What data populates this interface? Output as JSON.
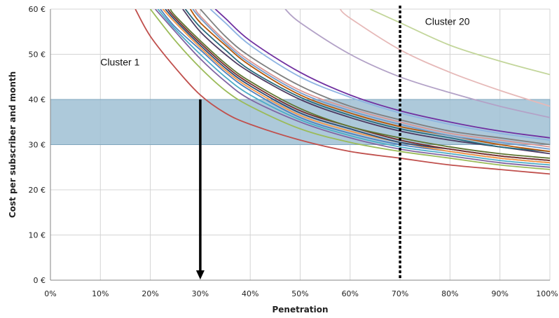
{
  "chart_data": {
    "type": "line",
    "title": "",
    "xlabel": "Penetration",
    "ylabel": "Cost per subscriber and month",
    "xlim": [
      0,
      100
    ],
    "ylim": [
      0,
      60
    ],
    "grid": true,
    "x_ticks": [
      "0%",
      "10%",
      "20%",
      "30%",
      "40%",
      "50%",
      "60%",
      "70%",
      "80%",
      "90%",
      "100%"
    ],
    "y_ticks": [
      "0 €",
      "10 €",
      "20 €",
      "30 €",
      "40 €",
      "50 €",
      "60 €"
    ],
    "band": {
      "y_from": 30,
      "y_to": 40,
      "color": "#9fc0d3"
    },
    "vertical_marker_x": 70,
    "arrow": {
      "x": 30,
      "y_from": 40,
      "y_to": 0
    },
    "annotations": [
      {
        "text": "Cluster 1",
        "x": 10,
        "y": 47.5
      },
      {
        "text": "Cluster 20",
        "x": 75,
        "y": 56.5
      }
    ],
    "series": [
      {
        "color": "#c0504d",
        "points": [
          [
            17,
            60
          ],
          [
            20,
            54
          ],
          [
            25,
            47
          ],
          [
            30,
            41
          ],
          [
            35,
            37
          ],
          [
            40,
            34.5
          ],
          [
            50,
            31
          ],
          [
            60,
            28.5
          ],
          [
            70,
            27
          ],
          [
            80,
            25.5
          ],
          [
            90,
            24.5
          ],
          [
            100,
            23.5
          ]
        ]
      },
      {
        "color": "#9bbb59",
        "points": [
          [
            20,
            60
          ],
          [
            25,
            53
          ],
          [
            30,
            47
          ],
          [
            35,
            42
          ],
          [
            40,
            38.5
          ],
          [
            50,
            33.5
          ],
          [
            60,
            30.5
          ],
          [
            70,
            28.5
          ],
          [
            80,
            27
          ],
          [
            90,
            25.5
          ],
          [
            100,
            24.5
          ]
        ]
      },
      {
        "color": "#8064a2",
        "points": [
          [
            21,
            60
          ],
          [
            25,
            55
          ],
          [
            30,
            49
          ],
          [
            35,
            44
          ],
          [
            40,
            40
          ],
          [
            50,
            35
          ],
          [
            60,
            31.5
          ],
          [
            70,
            29
          ],
          [
            80,
            27.5
          ],
          [
            90,
            26
          ],
          [
            100,
            25
          ]
        ]
      },
      {
        "color": "#4bacc6",
        "points": [
          [
            21.5,
            60
          ],
          [
            25,
            55.5
          ],
          [
            30,
            50
          ],
          [
            35,
            45
          ],
          [
            40,
            41
          ],
          [
            50,
            35.5
          ],
          [
            60,
            32
          ],
          [
            70,
            29.5
          ],
          [
            80,
            28
          ],
          [
            90,
            26.5
          ],
          [
            100,
            25.5
          ]
        ]
      },
      {
        "color": "#4f81bd",
        "points": [
          [
            22,
            60
          ],
          [
            25,
            56
          ],
          [
            30,
            51
          ],
          [
            35,
            46
          ],
          [
            40,
            42
          ],
          [
            50,
            36
          ],
          [
            60,
            32.5
          ],
          [
            70,
            30
          ],
          [
            80,
            28.5
          ],
          [
            90,
            27
          ],
          [
            100,
            26
          ]
        ]
      },
      {
        "color": "#f79646",
        "points": [
          [
            22.5,
            60
          ],
          [
            25,
            57
          ],
          [
            30,
            51.5
          ],
          [
            35,
            46.5
          ],
          [
            40,
            42.5
          ],
          [
            50,
            36.5
          ],
          [
            60,
            33
          ],
          [
            70,
            30.5
          ],
          [
            80,
            28.5
          ],
          [
            90,
            27
          ],
          [
            100,
            26
          ]
        ]
      },
      {
        "color": "#2c4d75",
        "points": [
          [
            23,
            60
          ],
          [
            25,
            57.5
          ],
          [
            30,
            52
          ],
          [
            35,
            47
          ],
          [
            40,
            43
          ],
          [
            50,
            37
          ],
          [
            60,
            33.5
          ],
          [
            70,
            30.5
          ],
          [
            80,
            29
          ],
          [
            90,
            27.5
          ],
          [
            100,
            26.5
          ]
        ]
      },
      {
        "color": "#772c2a",
        "points": [
          [
            23.5,
            60
          ],
          [
            25,
            58
          ],
          [
            30,
            52.5
          ],
          [
            35,
            47.5
          ],
          [
            40,
            43.5
          ],
          [
            50,
            37.5
          ],
          [
            60,
            34
          ],
          [
            70,
            31
          ],
          [
            80,
            29
          ],
          [
            90,
            27.5
          ],
          [
            100,
            26.5
          ]
        ]
      },
      {
        "color": "#5f7530",
        "points": [
          [
            24,
            60
          ],
          [
            25,
            58.5
          ],
          [
            30,
            53
          ],
          [
            35,
            48
          ],
          [
            40,
            44
          ],
          [
            50,
            38
          ],
          [
            60,
            34
          ],
          [
            70,
            31.5
          ],
          [
            80,
            29.5
          ],
          [
            90,
            28
          ],
          [
            100,
            27
          ]
        ]
      },
      {
        "color": "#4d3b62",
        "points": [
          [
            26.5,
            60
          ],
          [
            30,
            55
          ],
          [
            35,
            50
          ],
          [
            40,
            46
          ],
          [
            50,
            40
          ],
          [
            60,
            36
          ],
          [
            70,
            33
          ],
          [
            80,
            31
          ],
          [
            90,
            29.5
          ],
          [
            100,
            28
          ]
        ]
      },
      {
        "color": "#276a7c",
        "points": [
          [
            27,
            60
          ],
          [
            30,
            56
          ],
          [
            35,
            51
          ],
          [
            40,
            46.5
          ],
          [
            50,
            40.5
          ],
          [
            60,
            36.5
          ],
          [
            70,
            33.5
          ],
          [
            80,
            31.5
          ],
          [
            90,
            29.5
          ],
          [
            100,
            28.5
          ]
        ]
      },
      {
        "color": "#b65708",
        "points": [
          [
            28,
            60
          ],
          [
            30,
            57
          ],
          [
            35,
            52
          ],
          [
            40,
            47.5
          ],
          [
            50,
            41
          ],
          [
            60,
            37
          ],
          [
            70,
            34
          ],
          [
            80,
            32
          ],
          [
            90,
            30
          ],
          [
            100,
            28.5
          ]
        ]
      },
      {
        "color": "#729aca",
        "points": [
          [
            28.5,
            60
          ],
          [
            30,
            58
          ],
          [
            35,
            52.5
          ],
          [
            40,
            48
          ],
          [
            50,
            41.5
          ],
          [
            60,
            37.5
          ],
          [
            70,
            34.5
          ],
          [
            80,
            32
          ],
          [
            90,
            30.5
          ],
          [
            100,
            29
          ]
        ]
      },
      {
        "color": "#d99694",
        "points": [
          [
            29,
            60
          ],
          [
            30,
            58.5
          ],
          [
            35,
            53
          ],
          [
            40,
            48.5
          ],
          [
            50,
            42
          ],
          [
            60,
            38
          ],
          [
            70,
            35
          ],
          [
            80,
            32.5
          ],
          [
            90,
            31
          ],
          [
            100,
            29.5
          ]
        ]
      },
      {
        "color": "#7f7f7f",
        "points": [
          [
            30,
            60
          ],
          [
            35,
            54
          ],
          [
            40,
            49.5
          ],
          [
            50,
            43
          ],
          [
            60,
            38.5
          ],
          [
            70,
            35.5
          ],
          [
            80,
            33
          ],
          [
            90,
            31.5
          ],
          [
            100,
            30
          ]
        ]
      },
      {
        "color": "#8db3e2",
        "points": [
          [
            32,
            60
          ],
          [
            35,
            57
          ],
          [
            40,
            52
          ],
          [
            50,
            45
          ],
          [
            60,
            40.5
          ],
          [
            70,
            37
          ],
          [
            80,
            34.5
          ],
          [
            90,
            32.5
          ],
          [
            100,
            31
          ]
        ]
      },
      {
        "color": "#7030a0",
        "points": [
          [
            33,
            60
          ],
          [
            35,
            58
          ],
          [
            40,
            53
          ],
          [
            50,
            46
          ],
          [
            60,
            41
          ],
          [
            70,
            37.5
          ],
          [
            80,
            35
          ],
          [
            90,
            33
          ],
          [
            100,
            31.5
          ]
        ]
      },
      {
        "color": "#b3a2c7",
        "points": [
          [
            47,
            60
          ],
          [
            50,
            57
          ],
          [
            60,
            50
          ],
          [
            70,
            45
          ],
          [
            80,
            41.5
          ],
          [
            90,
            38.5
          ],
          [
            100,
            36
          ]
        ]
      },
      {
        "color": "#e6b9b8",
        "points": [
          [
            58,
            60
          ],
          [
            60,
            58
          ],
          [
            70,
            51
          ],
          [
            80,
            46
          ],
          [
            90,
            42
          ],
          [
            100,
            38.5
          ]
        ]
      },
      {
        "color": "#c3d69b",
        "points": [
          [
            64,
            60
          ],
          [
            70,
            57
          ],
          [
            80,
            52
          ],
          [
            90,
            48.5
          ],
          [
            100,
            45.5
          ]
        ]
      }
    ]
  }
}
